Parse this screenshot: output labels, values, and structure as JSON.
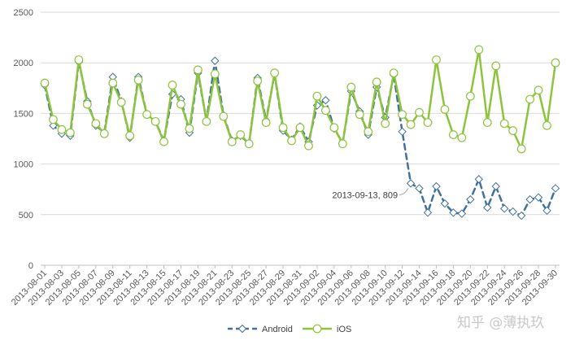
{
  "chart_data": {
    "type": "line",
    "title": "",
    "xlabel": "",
    "ylabel": "",
    "ylim": [
      0,
      2500
    ],
    "yticks": [
      0,
      500,
      1000,
      1500,
      2000,
      2500
    ],
    "grid": true,
    "legend_position": "bottom",
    "x": [
      "2013-08-01",
      "2013-08-02",
      "2013-08-03",
      "2013-08-04",
      "2013-08-05",
      "2013-08-06",
      "2013-08-07",
      "2013-08-08",
      "2013-08-09",
      "2013-08-10",
      "2013-08-11",
      "2013-08-12",
      "2013-08-13",
      "2013-08-14",
      "2013-08-15",
      "2013-08-16",
      "2013-08-17",
      "2013-08-18",
      "2013-08-19",
      "2013-08-20",
      "2013-08-21",
      "2013-08-22",
      "2013-08-23",
      "2013-08-24",
      "2013-08-25",
      "2013-08-26",
      "2013-08-27",
      "2013-08-28",
      "2013-08-29",
      "2013-08-30",
      "2013-08-31",
      "2013-09-01",
      "2013-09-02",
      "2013-09-03",
      "2013-09-04",
      "2013-09-05",
      "2013-09-06",
      "2013-09-07",
      "2013-09-08",
      "2013-09-09",
      "2013-09-10",
      "2013-09-11",
      "2013-09-12",
      "2013-09-13",
      "2013-09-14",
      "2013-09-15",
      "2013-09-16",
      "2013-09-17",
      "2013-09-18",
      "2013-09-19",
      "2013-09-20",
      "2013-09-21",
      "2013-09-22",
      "2013-09-23",
      "2013-09-24",
      "2013-09-25",
      "2013-09-26",
      "2013-09-27",
      "2013-09-28",
      "2013-09-29",
      "2013-09-30"
    ],
    "xtick_labels": [
      "2013-08-01",
      "2013-08-03",
      "2013-08-05",
      "2013-08-07",
      "2013-08-09",
      "2013-08-11",
      "2013-08-13",
      "2013-08-15",
      "2013-08-17",
      "2013-08-19",
      "2013-08-21",
      "2013-08-23",
      "2013-08-25",
      "2013-08-27",
      "2013-08-29",
      "2013-08-31",
      "2013-09-02",
      "2013-09-04",
      "2013-09-06",
      "2013-09-08",
      "2013-09-10",
      "2013-09-12",
      "2013-09-14",
      "2013-09-16",
      "2013-09-18",
      "2013-09-20",
      "2013-09-22",
      "2013-09-24",
      "2013-09-26",
      "2013-09-28",
      "2013-09-30"
    ],
    "series": [
      {
        "name": "Android",
        "color": "#41719c",
        "style": "dashed",
        "marker": "diamond",
        "values": [
          1780,
          1380,
          1300,
          1280,
          2010,
          1620,
          1380,
          1310,
          1860,
          1620,
          1260,
          1860,
          1490,
          1420,
          1230,
          1690,
          1640,
          1310,
          1900,
          1430,
          2020,
          1480,
          1230,
          1280,
          1200,
          1850,
          1430,
          1890,
          1330,
          1240,
          1370,
          1220,
          1580,
          1630,
          1350,
          1210,
          1720,
          1520,
          1290,
          1760,
          1460,
          1880,
          1320,
          809,
          760,
          520,
          780,
          610,
          520,
          510,
          650,
          850,
          570,
          780,
          560,
          530,
          490,
          650,
          670,
          540,
          760
        ]
      },
      {
        "name": "iOS",
        "color": "#8cc43c",
        "style": "solid",
        "marker": "circle",
        "values": [
          1800,
          1440,
          1340,
          1310,
          2030,
          1590,
          1400,
          1300,
          1800,
          1610,
          1280,
          1830,
          1490,
          1420,
          1220,
          1780,
          1590,
          1350,
          1930,
          1420,
          1890,
          1470,
          1220,
          1290,
          1200,
          1820,
          1410,
          1900,
          1360,
          1230,
          1360,
          1180,
          1670,
          1530,
          1360,
          1200,
          1760,
          1490,
          1320,
          1810,
          1400,
          1900,
          1490,
          1390,
          1510,
          1410,
          2030,
          1540,
          1290,
          1260,
          1670,
          2130,
          1410,
          1970,
          1400,
          1330,
          1150,
          1640,
          1730,
          1380,
          2000
        ]
      }
    ],
    "annotations": [
      {
        "x": "2013-09-13",
        "series": "Android",
        "text": "2013-09-13, 809"
      }
    ]
  },
  "watermark": "知乎 @薄执玖"
}
